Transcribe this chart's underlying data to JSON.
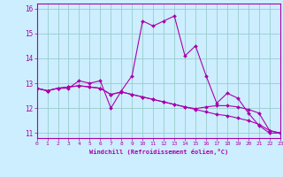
{
  "xlabel": "Windchill (Refroidissement éolien,°C)",
  "background_color": "#cceeff",
  "line_color": "#aa00aa",
  "grid_color": "#99cccc",
  "hours": [
    0,
    1,
    2,
    3,
    4,
    5,
    6,
    7,
    8,
    9,
    10,
    11,
    12,
    13,
    14,
    15,
    16,
    17,
    18,
    19,
    20,
    21,
    22,
    23
  ],
  "line1": [
    12.8,
    12.7,
    12.8,
    12.8,
    13.1,
    13.0,
    13.1,
    12.0,
    12.7,
    13.3,
    15.5,
    15.3,
    15.5,
    15.7,
    14.1,
    14.5,
    13.3,
    12.2,
    12.6,
    12.4,
    11.8,
    11.3,
    11.0,
    11.0
  ],
  "line2": [
    12.8,
    12.7,
    12.8,
    12.85,
    12.9,
    12.85,
    12.8,
    12.55,
    12.65,
    12.55,
    12.45,
    12.35,
    12.25,
    12.15,
    12.05,
    11.95,
    11.85,
    11.75,
    11.7,
    11.6,
    11.5,
    11.35,
    11.1,
    11.0
  ],
  "line3": [
    12.8,
    12.7,
    12.8,
    12.85,
    12.9,
    12.85,
    12.8,
    12.55,
    12.65,
    12.55,
    12.45,
    12.35,
    12.25,
    12.15,
    12.05,
    11.98,
    12.05,
    12.1,
    12.1,
    12.05,
    11.95,
    11.8,
    11.1,
    11.0
  ],
  "ylim": [
    10.8,
    16.2
  ],
  "xlim": [
    0,
    23
  ],
  "yticks": [
    11,
    12,
    13,
    14,
    15,
    16
  ],
  "xticks": [
    0,
    1,
    2,
    3,
    4,
    5,
    6,
    7,
    8,
    9,
    10,
    11,
    12,
    13,
    14,
    15,
    16,
    17,
    18,
    19,
    20,
    21,
    22,
    23
  ]
}
